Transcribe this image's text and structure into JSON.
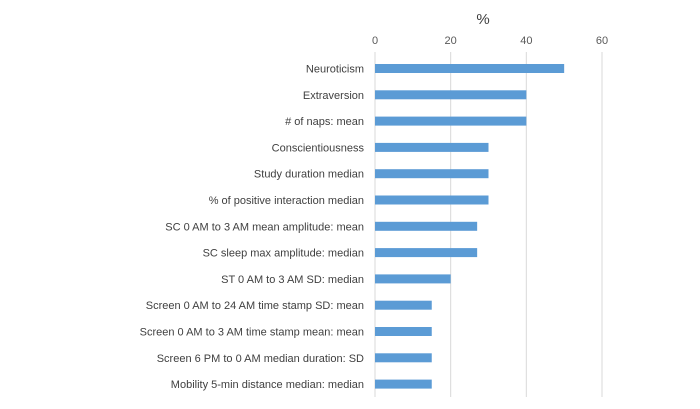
{
  "chart_data": {
    "type": "bar",
    "orientation": "horizontal",
    "title": "",
    "xlabel": "%",
    "ylabel": "",
    "xlim": [
      0,
      60
    ],
    "xticks": [
      0,
      20,
      40,
      60
    ],
    "xtick_labels": [
      "0",
      "20",
      "40",
      "60"
    ],
    "x_axis_position": "top",
    "grid": true,
    "legend": "none",
    "categories": [
      "Neuroticism",
      "Extraversion",
      "# of naps: mean",
      "Conscientiousness",
      "Study duration median",
      "% of positive interaction median",
      "SC 0 AM to 3 AM mean amplitude: mean",
      "SC sleep max amplitude: median",
      "ST 0 AM to 3 AM SD: median",
      "Screen 0 AM to 24 AM time stamp SD: mean",
      "Screen 0 AM to 3 AM time stamp mean: mean",
      "Screen 6 PM to 0 AM median duration: SD",
      "Mobility 5-min distance median: median"
    ],
    "values": [
      50,
      40,
      40,
      30,
      30,
      30,
      27,
      27,
      20,
      15,
      15,
      15,
      15
    ],
    "colors": {
      "bar": "#5B9BD5",
      "grid": "#D9D9D9",
      "text": "#404040"
    }
  }
}
